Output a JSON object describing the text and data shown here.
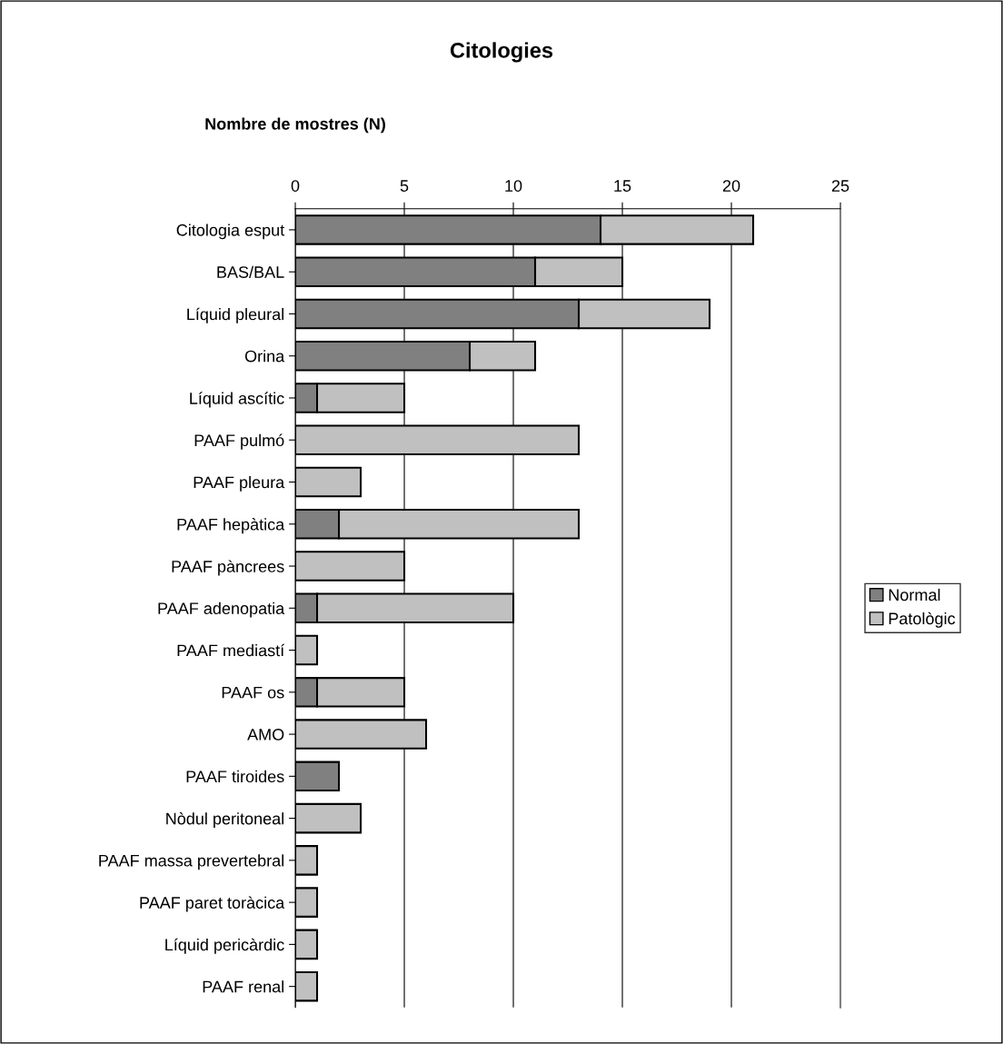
{
  "chart_data": {
    "type": "bar",
    "orientation": "horizontal",
    "stacked": true,
    "title": "Citologies",
    "xlabel": "Nombre de mostres (N)",
    "categories": [
      "Citologia esput",
      "BAS/BAL",
      "Líquid pleural",
      "Orina",
      "Líquid ascític",
      "PAAF pulmó",
      "PAAF pleura",
      "PAAF hepàtica",
      "PAAF pàncrees",
      "PAAF adenopatia",
      "PAAF mediastí",
      "PAAF os",
      "AMO",
      "PAAF tiroides",
      "Nòdul peritoneal",
      "PAAF massa prevertebral",
      "PAAF paret toràcica",
      "Líquid pericàrdic",
      "PAAF renal"
    ],
    "series": [
      {
        "name": "Normal",
        "color": "#808080",
        "values": [
          14,
          11,
          13,
          8,
          1,
          null,
          null,
          2,
          null,
          1,
          null,
          1,
          null,
          2,
          null,
          null,
          null,
          null,
          null
        ]
      },
      {
        "name": "Patològic",
        "color": "#c0c0c0",
        "values": [
          7,
          4,
          6,
          3,
          4,
          13,
          3,
          11,
          5,
          9,
          1,
          4,
          6,
          null,
          3,
          1,
          1,
          1,
          1
        ]
      }
    ],
    "xlim": [
      0,
      25
    ],
    "xticks": [
      0,
      5,
      10,
      15,
      20,
      25
    ],
    "grid": "x",
    "legend": "right"
  }
}
